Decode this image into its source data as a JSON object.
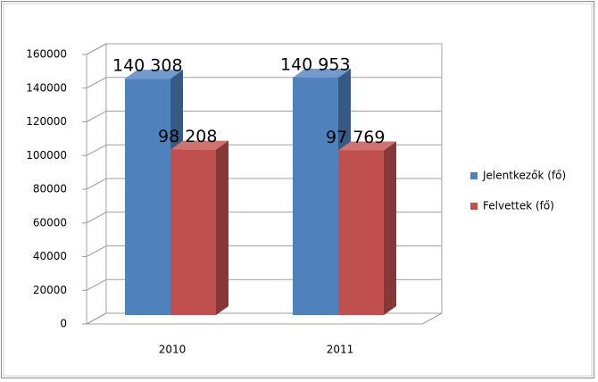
{
  "chart_data": {
    "type": "bar3d",
    "categories": [
      "2010",
      "2011"
    ],
    "series": [
      {
        "name": "Jelentkezők (fő)",
        "color": "#4f81bd",
        "values": [
          140308,
          140953
        ],
        "value_labels": [
          "140 308",
          "140 953"
        ]
      },
      {
        "name": "Felvettek (fő)",
        "color": "#c0504d",
        "values": [
          98208,
          97769
        ],
        "value_labels": [
          "98 208",
          "97 769"
        ]
      }
    ],
    "ylim": [
      0,
      160000
    ],
    "yticks": [
      0,
      20000,
      40000,
      60000,
      80000,
      100000,
      120000,
      140000,
      160000
    ],
    "grid": true,
    "legend": "right"
  }
}
